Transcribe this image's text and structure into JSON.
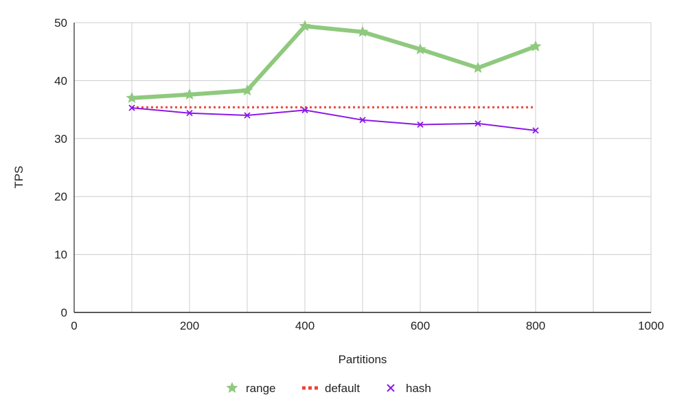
{
  "chart_data": {
    "type": "line",
    "xlabel": "Partitions",
    "ylabel": "TPS",
    "xlim": [
      0,
      1000
    ],
    "ylim": [
      0,
      50
    ],
    "xticks": [
      "0",
      "200",
      "400",
      "600",
      "800",
      "1000"
    ],
    "yticks": [
      "0",
      "10",
      "20",
      "30",
      "40",
      "50"
    ],
    "grid": true,
    "legend_position": "bottom",
    "x": [
      100,
      200,
      300,
      400,
      500,
      600,
      700,
      800
    ],
    "series": [
      {
        "name": "range",
        "color": "#8fc97e",
        "marker": "star",
        "style": "solid-thick",
        "values": [
          37.0,
          37.6,
          38.3,
          49.4,
          48.4,
          45.4,
          42.2,
          45.9
        ]
      },
      {
        "name": "default",
        "color": "#ee4433",
        "marker": "none",
        "style": "dotted",
        "values": [
          35.4,
          35.4,
          35.4,
          35.4,
          35.4,
          35.4,
          35.4,
          35.4
        ]
      },
      {
        "name": "hash",
        "color": "#8a18e8",
        "marker": "x",
        "style": "solid-thin",
        "values": [
          35.3,
          34.4,
          34.0,
          34.9,
          33.2,
          32.4,
          32.6,
          31.4
        ]
      }
    ]
  }
}
